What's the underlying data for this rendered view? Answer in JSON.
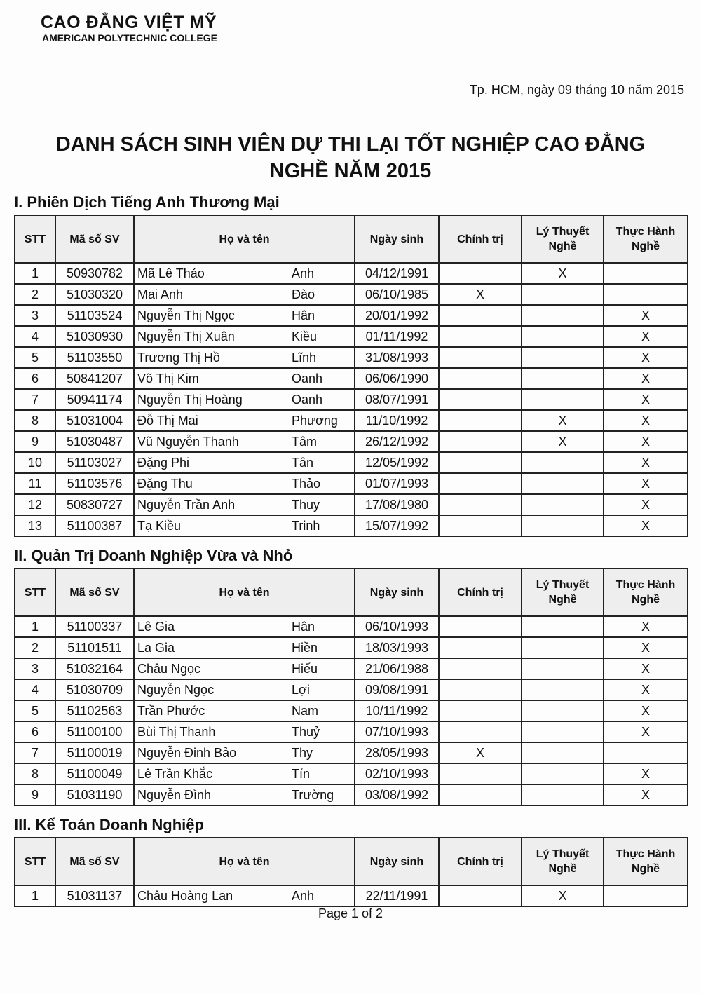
{
  "header": {
    "name": "CAO ĐẲNG VIỆT MỸ",
    "subname": "AMERICAN POLYTECHNIC COLLEGE"
  },
  "date": "Tp. HCM, ngày 09 tháng 10 năm 2015",
  "title_lines": [
    "DANH SÁCH SINH VIÊN DỰ THI LẠI TỐT NGHIỆP CAO ĐẲNG",
    "NGHỀ NĂM 2015"
  ],
  "columns": [
    "STT",
    "Mã số SV",
    "Họ và tên",
    "Ngày sinh",
    "Chính trị",
    "Lý Thuyết Nghề",
    "Thực Hành Nghề"
  ],
  "sections": [
    {
      "title": "I. Phiên Dịch Tiếng Anh Thương Mại",
      "rows": [
        [
          "1",
          "50930782",
          "Mã Lê Thảo",
          "Anh",
          "04/12/1991",
          null,
          "X",
          null
        ],
        [
          "2",
          "51030320",
          "Mai Anh",
          "Đào",
          "06/10/1985",
          "X",
          null,
          null
        ],
        [
          "3",
          "51103524",
          "Nguyễn Thị Ngọc",
          "Hân",
          "20/01/1992",
          null,
          null,
          "X"
        ],
        [
          "4",
          "51030930",
          "Nguyễn Thị Xuân",
          "Kiều",
          "01/11/1992",
          null,
          null,
          "X"
        ],
        [
          "5",
          "51103550",
          "Trương Thị Hồ",
          "Lĩnh",
          "31/08/1993",
          null,
          null,
          "X"
        ],
        [
          "6",
          "50841207",
          "Võ Thị Kim",
          "Oanh",
          "06/06/1990",
          null,
          null,
          "X"
        ],
        [
          "7",
          "50941174",
          "Nguyễn Thị Hoàng",
          "Oanh",
          "08/07/1991",
          null,
          null,
          "X"
        ],
        [
          "8",
          "51031004",
          "Đỗ Thị Mai",
          "Phương",
          "11/10/1992",
          null,
          "X",
          "X"
        ],
        [
          "9",
          "51030487",
          "Vũ Nguyễn Thanh",
          "Tâm",
          "26/12/1992",
          null,
          "X",
          "X"
        ],
        [
          "10",
          "51103027",
          "Đặng Phi",
          "Tân",
          "12/05/1992",
          null,
          null,
          "X"
        ],
        [
          "11",
          "51103576",
          "Đặng Thu",
          "Thảo",
          "01/07/1993",
          null,
          null,
          "X"
        ],
        [
          "12",
          "50830727",
          "Nguyễn Trần Anh",
          "Thuy",
          "17/08/1980",
          null,
          null,
          "X"
        ],
        [
          "13",
          "51100387",
          "Tạ Kiều",
          "Trinh",
          "15/07/1992",
          null,
          null,
          "X"
        ]
      ]
    },
    {
      "title": "II. Quản Trị Doanh Nghiệp Vừa và Nhỏ",
      "rows": [
        [
          "1",
          "51100337",
          "Lê Gia",
          "Hân",
          "06/10/1993",
          null,
          null,
          "X"
        ],
        [
          "2",
          "51101511",
          "La Gia",
          "Hiền",
          "18/03/1993",
          null,
          null,
          "X"
        ],
        [
          "3",
          "51032164",
          "Châu Ngọc",
          "Hiếu",
          "21/06/1988",
          null,
          null,
          "X"
        ],
        [
          "4",
          "51030709",
          "Nguyễn Ngọc",
          "Lợi",
          "09/08/1991",
          null,
          null,
          "X"
        ],
        [
          "5",
          "51102563",
          "Trần Phước",
          "Nam",
          "10/11/1992",
          null,
          null,
          "X"
        ],
        [
          "6",
          "51100100",
          "Bùi Thị Thanh",
          "Thuỷ",
          "07/10/1993",
          null,
          null,
          "X"
        ],
        [
          "7",
          "51100019",
          "Nguyễn Đinh Bảo",
          "Thy",
          "28/05/1993",
          "X",
          null,
          null
        ],
        [
          "8",
          "51100049",
          "Lê Trần Khắc",
          "Tín",
          "02/10/1993",
          null,
          null,
          "X"
        ],
        [
          "9",
          "51031190",
          "Nguyễn Đình",
          "Trường",
          "03/08/1992",
          null,
          null,
          "X"
        ]
      ]
    },
    {
      "title": "III. Kế Toán Doanh Nghiệp",
      "rows": [
        [
          "1",
          "51031137",
          "Châu Hoàng Lan",
          "Anh",
          "22/11/1991",
          null,
          "X",
          null
        ]
      ]
    }
  ],
  "footer": "Page 1 of 2"
}
